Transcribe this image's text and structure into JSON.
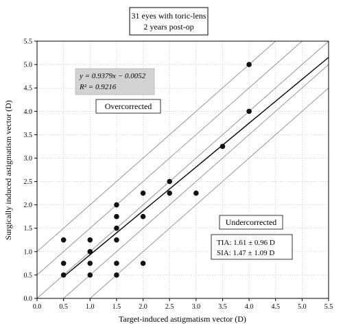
{
  "chart_data": {
    "type": "scatter",
    "title_lines": [
      "31 eyes with toric-lens",
      "2 years post-op"
    ],
    "xlabel": "Target-induced astigmatism vector (D)",
    "ylabel": "Surgically induced astigmatism vector (D)",
    "xlim": [
      0,
      5.5
    ],
    "ylim": [
      0,
      5.5
    ],
    "ticks": [
      "0.0",
      "0.5",
      "1.0",
      "1.5",
      "2.0",
      "2.5",
      "3.0",
      "3.5",
      "4.0",
      "4.5",
      "5.0",
      "5.5"
    ],
    "grid": true,
    "grid_style": "dotted",
    "points": [
      {
        "x": 0.5,
        "y": 1.25
      },
      {
        "x": 0.5,
        "y": 0.75
      },
      {
        "x": 0.5,
        "y": 0.5
      },
      {
        "x": 1.0,
        "y": 1.25
      },
      {
        "x": 1.0,
        "y": 1.0
      },
      {
        "x": 1.0,
        "y": 0.75
      },
      {
        "x": 1.0,
        "y": 0.5
      },
      {
        "x": 1.5,
        "y": 2.0
      },
      {
        "x": 1.5,
        "y": 1.75
      },
      {
        "x": 1.5,
        "y": 1.5
      },
      {
        "x": 1.5,
        "y": 1.25
      },
      {
        "x": 1.5,
        "y": 0.75
      },
      {
        "x": 1.5,
        "y": 0.5
      },
      {
        "x": 2.0,
        "y": 2.25
      },
      {
        "x": 2.0,
        "y": 1.75
      },
      {
        "x": 2.0,
        "y": 0.75
      },
      {
        "x": 2.5,
        "y": 2.5
      },
      {
        "x": 2.5,
        "y": 2.25
      },
      {
        "x": 3.0,
        "y": 2.25
      },
      {
        "x": 3.5,
        "y": 3.25
      },
      {
        "x": 4.0,
        "y": 5.0
      },
      {
        "x": 4.0,
        "y": 4.0
      }
    ],
    "regression": {
      "slope": 0.9379,
      "intercept": -0.0052,
      "x_range": [
        0.5,
        5.5
      ]
    },
    "reference_lines": [
      {
        "intercept": 0,
        "style": "thin"
      },
      {
        "intercept": 0.5,
        "style": "thin"
      },
      {
        "intercept": -0.5,
        "style": "thin"
      },
      {
        "intercept": 1.0,
        "style": "thin"
      },
      {
        "intercept": -1.0,
        "style": "thin"
      }
    ],
    "equation_lines": [
      "y = 0.9379x − 0.0052",
      "R² = 0.9216"
    ],
    "label_overcorrected": "Overcorrected",
    "label_undercorrected": "Undercorrected",
    "stats_lines": [
      "TIA: 1.61 ± 0.96 D",
      "SIA: 1.47 ± 1.09 D"
    ],
    "colors": {
      "points": "#111111",
      "regression": "#000000",
      "reference": "#8c8c8c",
      "equation_bg": "#d2d2d2",
      "grid": "#b0b0b0"
    }
  }
}
